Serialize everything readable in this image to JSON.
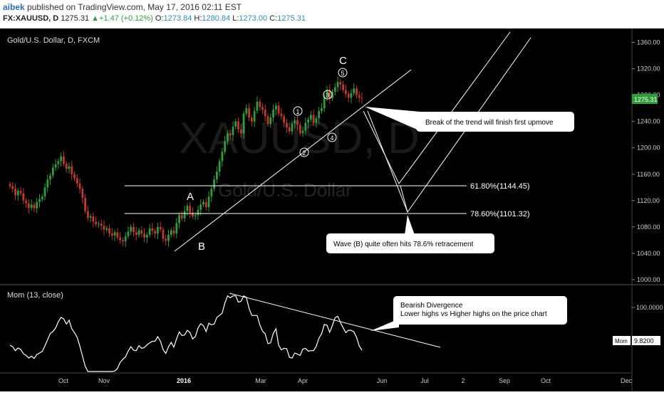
{
  "header": {
    "user": "aibek",
    "published": "published on TradingView.com, May 17, 2016 02:11 EST",
    "symbol": "FX:XAUUSD, D",
    "last": "1275.31",
    "change": "+1.47 (+0.12%)",
    "o_label": "O:",
    "o_val": "1273.84",
    "h_label": "H:",
    "h_val": "1280.84",
    "l_label": "L:",
    "l_val": "1273.00",
    "c_label": "C:",
    "c_val": "1275.31"
  },
  "main_pane": {
    "title": "Gold/U.S. Dollar, D, FXCM",
    "watermark_symbol": "XAUUSD, D",
    "watermark_name": "Gold/U.S. Dollar",
    "price_ticks": [
      "1360.00",
      "1320.00",
      "1280.00",
      "1240.00",
      "1200.00",
      "1160.00",
      "1120.00",
      "1080.00",
      "1040.00",
      "1000.00"
    ],
    "last_price_label": "1275.31",
    "fib_levels": [
      {
        "label": "61.80%(1144.45)",
        "value": 1144.45
      },
      {
        "label": "78.60%(1101.32)",
        "value": 1101.32
      }
    ],
    "wave_labels": {
      "A": "A",
      "B": "B",
      "C": "C"
    },
    "wave_numbers": [
      "1",
      "2",
      "3",
      "4",
      "5"
    ],
    "callout_trend": "Break of the trend will finish first upmove",
    "callout_wave": "Wave (B) quite often hits 78.6% retracement"
  },
  "mom_pane": {
    "title": "Mom (13, close)",
    "tick": "100.0000",
    "badge_name": "Mom",
    "badge_value": "9.8200",
    "callout_line1": "Bearish Divergence",
    "callout_line2": "Lower highs vs Higher highs on the price chart"
  },
  "time_axis": [
    "Oct",
    "Nov",
    "2016",
    "Mar",
    "Apr",
    "Jun",
    "Jul",
    "2",
    "Sep",
    "Oct",
    "Dec"
  ],
  "colors": {
    "up": "#2e9e3b",
    "down": "#c0392b",
    "accent": "#2b8fb6",
    "last_price_bg": "#2e9e3b"
  },
  "chart_data": {
    "type": "candlestick",
    "price_range": [
      1000,
      1360
    ],
    "closes": [
      1142,
      1138,
      1128,
      1135,
      1131,
      1120,
      1116,
      1109,
      1114,
      1108,
      1118,
      1122,
      1126,
      1140,
      1152,
      1158,
      1170,
      1175,
      1180,
      1187,
      1176,
      1168,
      1172,
      1160,
      1154,
      1146,
      1138,
      1124,
      1104,
      1094,
      1096,
      1088,
      1084,
      1085,
      1082,
      1076,
      1078,
      1070,
      1067,
      1072,
      1064,
      1060,
      1058,
      1066,
      1073,
      1080,
      1072,
      1068,
      1075,
      1070,
      1064,
      1068,
      1078,
      1074,
      1070,
      1080,
      1076,
      1062,
      1059,
      1068,
      1075,
      1070,
      1086,
      1098,
      1093,
      1104,
      1112,
      1102,
      1096,
      1098,
      1106,
      1114,
      1118,
      1110,
      1126,
      1138,
      1152,
      1164,
      1180,
      1194,
      1210,
      1222,
      1219,
      1232,
      1240,
      1228,
      1222,
      1252,
      1260,
      1246,
      1240,
      1256,
      1270,
      1262,
      1258,
      1248,
      1236,
      1246,
      1258,
      1264,
      1252,
      1248,
      1238,
      1231,
      1225,
      1237,
      1242,
      1235,
      1222,
      1226,
      1238,
      1243,
      1250,
      1238,
      1245,
      1256,
      1260,
      1278,
      1288,
      1275,
      1285,
      1292,
      1300,
      1296,
      1288,
      1282,
      1276,
      1283,
      1290,
      1280,
      1276,
      1275.31
    ],
    "mom_range": [
      -120,
      130
    ]
  }
}
